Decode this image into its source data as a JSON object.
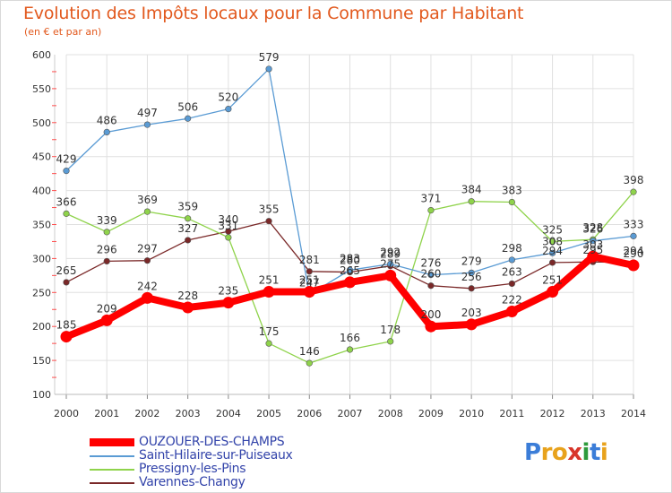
{
  "title": "Evolution des Impôts locaux pour la Commune par Habitant",
  "subtitle": "(en € et par an)",
  "logo": {
    "text": "Proxiti",
    "letters": [
      "P",
      "r",
      "o",
      "x",
      "i",
      "t",
      "i"
    ]
  },
  "colors": {
    "title": "#e2591e",
    "axis_text": "#333333",
    "grid": "#e0e0e0",
    "legend_text": "#3344aa",
    "logo_letters": [
      "#3b7dd8",
      "#e8a21c",
      "#e8a21c",
      "#d8352a",
      "#2d9a3b",
      "#3b7dd8",
      "#e8a21c"
    ]
  },
  "chart_data": {
    "type": "line",
    "title": "Evolution des Impôts locaux pour la Commune par Habitant",
    "subtitle": "(en € et par an)",
    "xlabel": "",
    "ylabel": "",
    "x": [
      2000,
      2001,
      2002,
      2003,
      2004,
      2005,
      2006,
      2007,
      2008,
      2009,
      2010,
      2011,
      2012,
      2013,
      2014
    ],
    "ylim": [
      100,
      600
    ],
    "yticks": [
      100,
      150,
      200,
      250,
      300,
      350,
      400,
      450,
      500,
      550,
      600
    ],
    "grid": true,
    "legend_position": "bottom-left",
    "series": [
      {
        "name": "OUZOUER-DES-CHAMPS",
        "color": "#ff0000",
        "style": "thick",
        "values": [
          185,
          209,
          242,
          228,
          235,
          251,
          251,
          265,
          275,
          200,
          203,
          222,
          251,
          303,
          290
        ],
        "labels": [
          "185",
          "209",
          "242",
          "228",
          "235",
          "251",
          "251",
          "265",
          "275",
          "200",
          "203",
          "222",
          "251",
          "303",
          "290"
        ]
      },
      {
        "name": "Saint-Hilaire-sur-Puiseaux",
        "color": "#5a9bd4",
        "style": "thin",
        "values": [
          429,
          486,
          497,
          506,
          520,
          579,
          247,
          283,
          292,
          276,
          279,
          298,
          308,
          326,
          333
        ],
        "labels": [
          "429",
          "486",
          "497",
          "506",
          "520",
          "579",
          "247",
          "283",
          "292",
          "276",
          "279",
          "298",
          "308",
          "326",
          "333"
        ]
      },
      {
        "name": "Pressigny-les-Pins",
        "color": "#8fd34b",
        "style": "thin",
        "values": [
          366,
          339,
          369,
          359,
          331,
          175,
          146,
          166,
          178,
          371,
          384,
          383,
          325,
          328,
          398
        ],
        "labels": [
          "366",
          "339",
          "369",
          "359",
          "331",
          "175",
          "146",
          "166",
          "178",
          "371",
          "384",
          "383",
          "325",
          "328",
          "398"
        ]
      },
      {
        "name": "Varennes-Changy",
        "color": "#7a2828",
        "style": "thin",
        "values": [
          265,
          296,
          297,
          327,
          340,
          355,
          281,
          280,
          289,
          260,
          256,
          263,
          294,
          295,
          294
        ],
        "labels": [
          "265",
          "296",
          "297",
          "327",
          "340",
          "355",
          "281",
          "280",
          "289",
          "260",
          "256",
          "263",
          "294",
          "295",
          "294"
        ]
      }
    ]
  }
}
